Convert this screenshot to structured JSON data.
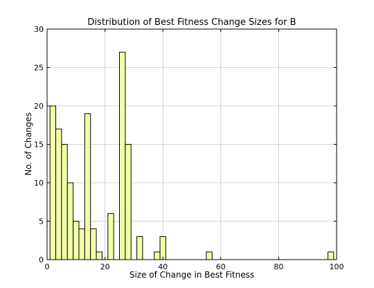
{
  "chart_data": {
    "type": "bar",
    "subtype": "histogram",
    "title": "Distribution of Best Fitness Change Sizes for B",
    "xlabel": "Size of Change in Best Fitness",
    "ylabel": "No. of Changes",
    "xlim": [
      0,
      100
    ],
    "ylim": [
      0,
      30
    ],
    "xticks": [
      "0",
      "20",
      "40",
      "60",
      "80",
      "100"
    ],
    "yticks": [
      "0",
      "5",
      "10",
      "15",
      "20",
      "25",
      "30"
    ],
    "grid": true,
    "bar_color": "#f2ffa8",
    "edge_color": "#000000",
    "bin_width": 2,
    "bins": [
      {
        "x0": 1,
        "x1": 3,
        "count": 20
      },
      {
        "x0": 3,
        "x1": 5,
        "count": 17
      },
      {
        "x0": 5,
        "x1": 7,
        "count": 15
      },
      {
        "x0": 7,
        "x1": 9,
        "count": 10
      },
      {
        "x0": 9,
        "x1": 11,
        "count": 5
      },
      {
        "x0": 11,
        "x1": 13,
        "count": 4
      },
      {
        "x0": 13,
        "x1": 15,
        "count": 19
      },
      {
        "x0": 15,
        "x1": 17,
        "count": 4
      },
      {
        "x0": 17,
        "x1": 19,
        "count": 1
      },
      {
        "x0": 21,
        "x1": 23,
        "count": 6
      },
      {
        "x0": 25,
        "x1": 27,
        "count": 27
      },
      {
        "x0": 27,
        "x1": 29,
        "count": 15
      },
      {
        "x0": 31,
        "x1": 33,
        "count": 3
      },
      {
        "x0": 37,
        "x1": 39,
        "count": 1
      },
      {
        "x0": 39,
        "x1": 41,
        "count": 3
      },
      {
        "x0": 55,
        "x1": 57,
        "count": 1
      },
      {
        "x0": 97,
        "x1": 99,
        "count": 1
      }
    ]
  }
}
